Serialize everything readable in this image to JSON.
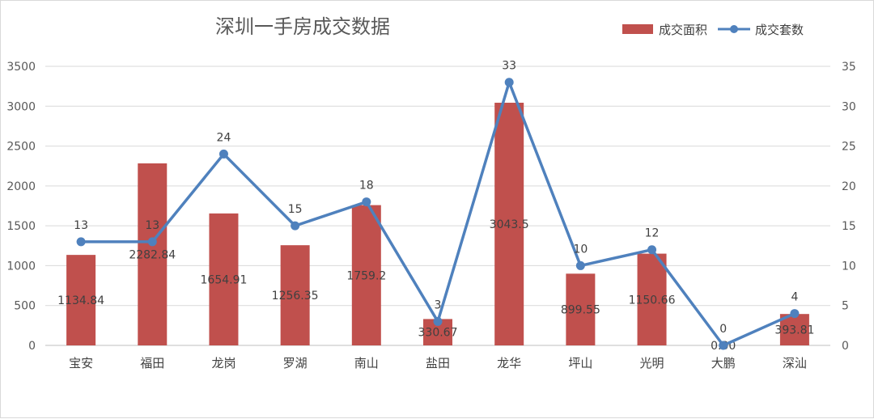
{
  "chart_data": {
    "type": "bar+line",
    "title": "深圳一手房成交数据",
    "categories": [
      "宝安",
      "福田",
      "龙岗",
      "罗湖",
      "南山",
      "盐田",
      "龙华",
      "坪山",
      "光明",
      "大鹏",
      "深汕"
    ],
    "series": [
      {
        "name": "成交面积",
        "type": "bar",
        "axis": "left",
        "color": "#c0504d",
        "values": [
          1134.84,
          2282.84,
          1654.91,
          1256.35,
          1759.2,
          330.67,
          3043.5,
          899.55,
          1150.66,
          0.0,
          393.81
        ],
        "labels": [
          "1134.84",
          "2282.84",
          "1654.91",
          "1256.35",
          "1759.2",
          "330.67",
          "3043.5",
          "899.55",
          "1150.66",
          "0.00",
          "393.81"
        ]
      },
      {
        "name": "成交套数",
        "type": "line",
        "axis": "right",
        "color": "#4f81bd",
        "values": [
          13,
          13,
          24,
          15,
          18,
          3,
          33,
          10,
          12,
          0,
          4
        ],
        "labels": [
          "13",
          "13",
          "24",
          "15",
          "18",
          "3",
          "33",
          "10",
          "12",
          "0",
          "4"
        ]
      }
    ],
    "y_left": {
      "min": 0,
      "max": 3500,
      "step": 500,
      "ticks": [
        "0",
        "500",
        "1000",
        "1500",
        "2000",
        "2500",
        "3000",
        "3500"
      ]
    },
    "y_right": {
      "min": 0,
      "max": 35,
      "step": 5,
      "ticks": [
        "0",
        "5",
        "10",
        "15",
        "20",
        "25",
        "30",
        "35"
      ]
    },
    "grid": true,
    "legend": "top-right"
  }
}
